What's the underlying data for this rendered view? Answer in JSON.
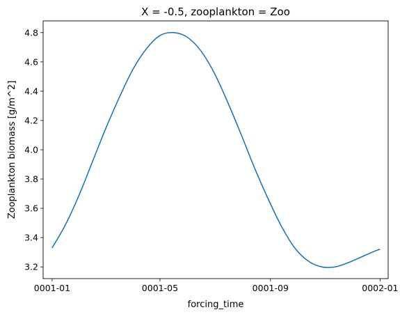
{
  "chart_data": {
    "type": "line",
    "title": "X = -0.5, zooplankton = Zoo",
    "xlabel": "forcing_time",
    "ylabel": "Zooplankton biomass [g/m^2]",
    "xlim": [
      "0000-12-22",
      "0002-01-10"
    ],
    "ylim": [
      3.12,
      4.88
    ],
    "x_ticks": [
      "0001-01",
      "0001-05",
      "0001-09",
      "0002-01"
    ],
    "y_ticks": [
      "3.2",
      "3.4",
      "3.6",
      "3.8",
      "4.0",
      "4.2",
      "4.4",
      "4.6",
      "4.8"
    ],
    "grid": false,
    "series": [
      {
        "color": "#1f77b4",
        "x": [
          "0001-01-01",
          "0001-01-16",
          "0001-01-31",
          "0001-02-15",
          "0001-03-02",
          "0001-03-17",
          "0001-04-01",
          "0001-04-16",
          "0001-05-01",
          "0001-05-16",
          "0001-05-31",
          "0001-06-15",
          "0001-06-30",
          "0001-07-15",
          "0001-07-30",
          "0001-08-14",
          "0001-08-29",
          "0001-09-13",
          "0001-09-28",
          "0001-10-13",
          "0001-10-28",
          "0001-11-12",
          "0001-11-27",
          "0001-12-12",
          "0001-12-27",
          "0002-01-01"
        ],
        "values": [
          3.33,
          3.49,
          3.69,
          3.92,
          4.15,
          4.36,
          4.55,
          4.69,
          4.78,
          4.8,
          4.77,
          4.68,
          4.53,
          4.33,
          4.11,
          3.88,
          3.67,
          3.48,
          3.33,
          3.24,
          3.2,
          3.2,
          3.23,
          3.27,
          3.31,
          3.32
        ]
      }
    ]
  }
}
